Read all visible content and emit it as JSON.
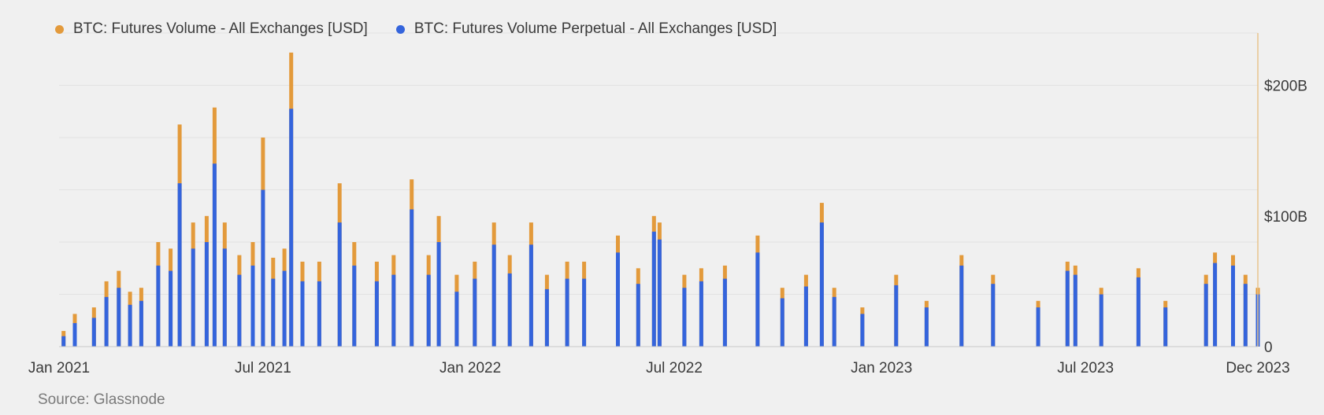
{
  "chart_data": {
    "type": "bar",
    "title": "",
    "legend": {
      "placement": "top-left",
      "entries": [
        {
          "label": "BTC: Futures Volume - All Exchanges [USD]",
          "color": "#e39a3b"
        },
        {
          "label": "BTC: Futures Volume Perpetual - All Exchanges [USD]",
          "color": "#3464dc"
        }
      ]
    },
    "x_axis": {
      "start": "2021-01-01",
      "end": "2023-12-01",
      "ticks": [
        {
          "date": "2021-01-01",
          "label": "Jan 2021"
        },
        {
          "date": "2021-07-01",
          "label": "Jul 2021"
        },
        {
          "date": "2022-01-01",
          "label": "Jan 2022"
        },
        {
          "date": "2022-07-01",
          "label": "Jul 2022"
        },
        {
          "date": "2023-01-01",
          "label": "Jan 2023"
        },
        {
          "date": "2023-07-01",
          "label": "Jul 2023"
        },
        {
          "date": "2023-12-01",
          "label": "Dec 2023"
        }
      ]
    },
    "y_axis": {
      "unit": "USD billions",
      "position": "right",
      "range": [
        0,
        240
      ],
      "ticks": [
        {
          "value": 0,
          "label": "0"
        },
        {
          "value": 100,
          "label": "$100B"
        },
        {
          "value": 200,
          "label": "$200B"
        }
      ],
      "grid": true
    },
    "series": [
      {
        "name": "BTC: Futures Volume - All Exchanges [USD]",
        "color": "#e39a3b",
        "points": [
          [
            "2021-01-05",
            12
          ],
          [
            "2021-01-15",
            25
          ],
          [
            "2021-02-01",
            30
          ],
          [
            "2021-02-12",
            50
          ],
          [
            "2021-02-23",
            58
          ],
          [
            "2021-03-05",
            42
          ],
          [
            "2021-03-15",
            45
          ],
          [
            "2021-03-30",
            80
          ],
          [
            "2021-04-10",
            75
          ],
          [
            "2021-04-18",
            170
          ],
          [
            "2021-04-30",
            95
          ],
          [
            "2021-05-12",
            100
          ],
          [
            "2021-05-19",
            183
          ],
          [
            "2021-05-28",
            95
          ],
          [
            "2021-06-10",
            70
          ],
          [
            "2021-06-22",
            80
          ],
          [
            "2021-07-01",
            160
          ],
          [
            "2021-07-10",
            68
          ],
          [
            "2021-07-20",
            75
          ],
          [
            "2021-07-26",
            225
          ],
          [
            "2021-08-05",
            65
          ],
          [
            "2021-08-20",
            65
          ],
          [
            "2021-09-07",
            125
          ],
          [
            "2021-09-20",
            80
          ],
          [
            "2021-10-10",
            65
          ],
          [
            "2021-10-25",
            70
          ],
          [
            "2021-11-10",
            128
          ],
          [
            "2021-11-25",
            70
          ],
          [
            "2021-12-04",
            100
          ],
          [
            "2021-12-20",
            55
          ],
          [
            "2022-01-05",
            65
          ],
          [
            "2022-01-22",
            95
          ],
          [
            "2022-02-05",
            70
          ],
          [
            "2022-02-24",
            95
          ],
          [
            "2022-03-10",
            55
          ],
          [
            "2022-03-28",
            65
          ],
          [
            "2022-04-12",
            65
          ],
          [
            "2022-05-12",
            85
          ],
          [
            "2022-05-30",
            60
          ],
          [
            "2022-06-13",
            100
          ],
          [
            "2022-06-18",
            95
          ],
          [
            "2022-07-10",
            55
          ],
          [
            "2022-07-25",
            60
          ],
          [
            "2022-08-15",
            62
          ],
          [
            "2022-09-13",
            85
          ],
          [
            "2022-10-05",
            45
          ],
          [
            "2022-10-26",
            55
          ],
          [
            "2022-11-09",
            110
          ],
          [
            "2022-11-20",
            45
          ],
          [
            "2022-12-15",
            30
          ],
          [
            "2023-01-14",
            55
          ],
          [
            "2023-02-10",
            35
          ],
          [
            "2023-03-13",
            70
          ],
          [
            "2023-04-10",
            55
          ],
          [
            "2023-05-20",
            35
          ],
          [
            "2023-06-15",
            65
          ],
          [
            "2023-06-22",
            62
          ],
          [
            "2023-07-15",
            45
          ],
          [
            "2023-08-17",
            60
          ],
          [
            "2023-09-10",
            35
          ],
          [
            "2023-10-16",
            55
          ],
          [
            "2023-10-24",
            72
          ],
          [
            "2023-11-09",
            70
          ],
          [
            "2023-11-20",
            55
          ],
          [
            "2023-12-01",
            45
          ]
        ]
      },
      {
        "name": "BTC: Futures Volume Perpetual - All Exchanges [USD]",
        "color": "#3464dc",
        "points": [
          [
            "2021-01-05",
            8
          ],
          [
            "2021-01-15",
            18
          ],
          [
            "2021-02-01",
            22
          ],
          [
            "2021-02-12",
            38
          ],
          [
            "2021-02-23",
            45
          ],
          [
            "2021-03-05",
            32
          ],
          [
            "2021-03-15",
            35
          ],
          [
            "2021-03-30",
            62
          ],
          [
            "2021-04-10",
            58
          ],
          [
            "2021-04-18",
            125
          ],
          [
            "2021-04-30",
            75
          ],
          [
            "2021-05-12",
            80
          ],
          [
            "2021-05-19",
            140
          ],
          [
            "2021-05-28",
            75
          ],
          [
            "2021-06-10",
            55
          ],
          [
            "2021-06-22",
            62
          ],
          [
            "2021-07-01",
            120
          ],
          [
            "2021-07-10",
            52
          ],
          [
            "2021-07-20",
            58
          ],
          [
            "2021-07-26",
            182
          ],
          [
            "2021-08-05",
            50
          ],
          [
            "2021-08-20",
            50
          ],
          [
            "2021-09-07",
            95
          ],
          [
            "2021-09-20",
            62
          ],
          [
            "2021-10-10",
            50
          ],
          [
            "2021-10-25",
            55
          ],
          [
            "2021-11-10",
            105
          ],
          [
            "2021-11-25",
            55
          ],
          [
            "2021-12-04",
            80
          ],
          [
            "2021-12-20",
            42
          ],
          [
            "2022-01-05",
            52
          ],
          [
            "2022-01-22",
            78
          ],
          [
            "2022-02-05",
            56
          ],
          [
            "2022-02-24",
            78
          ],
          [
            "2022-03-10",
            44
          ],
          [
            "2022-03-28",
            52
          ],
          [
            "2022-04-12",
            52
          ],
          [
            "2022-05-12",
            72
          ],
          [
            "2022-05-30",
            48
          ],
          [
            "2022-06-13",
            88
          ],
          [
            "2022-06-18",
            82
          ],
          [
            "2022-07-10",
            45
          ],
          [
            "2022-07-25",
            50
          ],
          [
            "2022-08-15",
            52
          ],
          [
            "2022-09-13",
            72
          ],
          [
            "2022-10-05",
            37
          ],
          [
            "2022-10-26",
            46
          ],
          [
            "2022-11-09",
            95
          ],
          [
            "2022-11-20",
            38
          ],
          [
            "2022-12-15",
            25
          ],
          [
            "2023-01-14",
            47
          ],
          [
            "2023-02-10",
            30
          ],
          [
            "2023-03-13",
            62
          ],
          [
            "2023-04-10",
            48
          ],
          [
            "2023-05-20",
            30
          ],
          [
            "2023-06-15",
            58
          ],
          [
            "2023-06-22",
            55
          ],
          [
            "2023-07-15",
            40
          ],
          [
            "2023-08-17",
            53
          ],
          [
            "2023-09-10",
            30
          ],
          [
            "2023-10-16",
            48
          ],
          [
            "2023-10-24",
            64
          ],
          [
            "2023-11-09",
            62
          ],
          [
            "2023-11-20",
            48
          ],
          [
            "2023-12-01",
            40
          ]
        ]
      }
    ]
  },
  "source": "Source: Glassnode"
}
